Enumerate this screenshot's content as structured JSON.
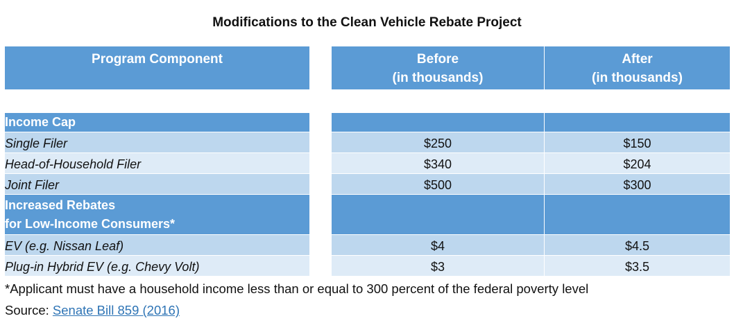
{
  "title": "Modifications to the Clean Vehicle Rebate Project",
  "header": {
    "component": "Program Component",
    "before_line1": "Before",
    "before_line2": "(in thousands)",
    "after_line1": "After",
    "after_line2": "(in thousands)"
  },
  "sections": [
    {
      "label_lines": [
        "Income Cap"
      ],
      "rows": [
        {
          "label": "Single Filer",
          "before": "$250",
          "after": "$150"
        },
        {
          "label": "Head-of-Household Filer",
          "before": "$340",
          "after": "$204"
        },
        {
          "label": "Joint Filer",
          "before": "$500",
          "after": "$300"
        }
      ]
    },
    {
      "label_lines": [
        "Increased Rebates",
        "for Low-Income Consumers*"
      ],
      "rows": [
        {
          "label": "EV (e.g. Nissan Leaf)",
          "before": "$4",
          "after": "$4.5"
        },
        {
          "label": "Plug-in Hybrid EV (e.g. Chevy Volt)",
          "before": "$3",
          "after": "$3.5"
        }
      ]
    }
  ],
  "footnote": "*Applicant must have a household income less than or equal to 300 percent of the federal poverty level",
  "source": {
    "prefix": "Source: ",
    "link_text": "Senate Bill 859 (2016)"
  },
  "colors": {
    "header_blue": "#5b9bd5",
    "row_dark": "#bdd7ee",
    "row_light": "#deebf7",
    "link": "#2e74b5"
  }
}
